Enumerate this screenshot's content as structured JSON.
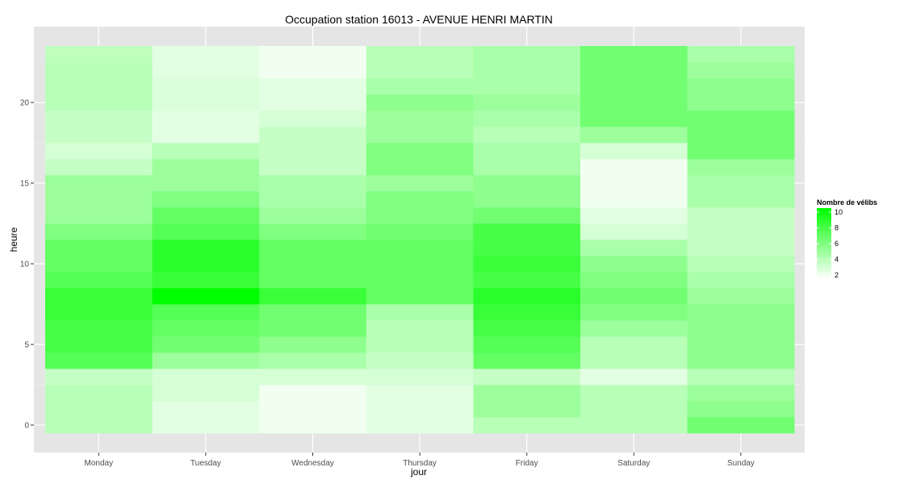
{
  "chart_data": {
    "type": "heatmap",
    "title": "Occupation station 16013 - AVENUE HENRI MARTIN",
    "xlabel": "jour",
    "ylabel": "heure",
    "x_categories": [
      "Monday",
      "Tuesday",
      "Wednesday",
      "Thursday",
      "Friday",
      "Saturday",
      "Sunday"
    ],
    "y_range": [
      -0.5,
      23.5
    ],
    "y_ticks": [
      0,
      5,
      10,
      15,
      20
    ],
    "y_tick_labels": [
      "0",
      "5",
      "10",
      "15",
      "20"
    ],
    "hours": [
      0,
      1,
      2,
      3,
      4,
      5,
      6,
      7,
      8,
      9,
      10,
      11,
      12,
      13,
      14,
      15,
      16,
      17,
      18,
      19,
      20,
      21,
      22,
      23
    ],
    "grid": true,
    "legend": {
      "title": "Nombre de vélibs",
      "position": "right",
      "min": 1.5,
      "max": 10.5,
      "ticks": [
        2,
        4,
        6,
        8,
        10
      ],
      "tick_labels": [
        "2",
        "4",
        "6",
        "8",
        "10"
      ],
      "low_color": "#ffffff",
      "high_color": "#00ff00"
    },
    "series": [
      {
        "name": "Monday",
        "values": [
          4.0,
          4.0,
          4.0,
          3.5,
          7.5,
          8.0,
          8.0,
          8.5,
          8.5,
          7.5,
          7.0,
          7.0,
          6.0,
          5.0,
          5.0,
          5.0,
          3.5,
          3.0,
          3.5,
          3.5,
          4.0,
          4.0,
          4.0,
          3.8
        ]
      },
      {
        "name": "Tuesday",
        "values": [
          2.5,
          2.5,
          3.0,
          3.0,
          5.0,
          6.5,
          7.0,
          7.5,
          10.5,
          8.5,
          9.0,
          9.0,
          7.5,
          7.0,
          6.0,
          5.0,
          5.0,
          4.0,
          2.5,
          2.5,
          2.8,
          2.8,
          2.5,
          2.5
        ]
      },
      {
        "name": "Wednesday",
        "values": [
          2.0,
          2.0,
          2.0,
          3.0,
          4.5,
          5.5,
          6.5,
          6.5,
          8.5,
          7.0,
          7.0,
          7.0,
          6.0,
          5.0,
          4.5,
          4.5,
          3.5,
          3.5,
          3.5,
          3.0,
          2.5,
          2.5,
          2.0,
          2.0
        ]
      },
      {
        "name": "Thursday",
        "values": [
          2.5,
          2.5,
          2.5,
          3.0,
          3.5,
          4.0,
          4.0,
          4.5,
          7.0,
          7.0,
          7.0,
          7.0,
          6.5,
          6.0,
          6.0,
          5.0,
          6.0,
          6.0,
          5.0,
          5.0,
          5.5,
          4.5,
          4.0,
          4.0
        ]
      },
      {
        "name": "Friday",
        "values": [
          4.0,
          5.0,
          5.0,
          3.5,
          7.0,
          7.5,
          8.0,
          8.5,
          9.0,
          8.0,
          8.5,
          8.0,
          8.0,
          6.5,
          5.5,
          5.5,
          4.5,
          4.5,
          4.0,
          4.5,
          5.0,
          4.5,
          4.5,
          4.5
        ]
      },
      {
        "name": "Saturday",
        "values": [
          4.0,
          4.0,
          4.0,
          2.5,
          4.0,
          4.0,
          5.0,
          6.0,
          6.5,
          6.0,
          5.5,
          4.5,
          3.0,
          2.5,
          2.0,
          2.0,
          2.0,
          3.0,
          5.0,
          6.5,
          6.5,
          6.5,
          6.5,
          6.5
        ]
      },
      {
        "name": "Sunday",
        "values": [
          6.5,
          5.5,
          5.0,
          4.0,
          5.5,
          5.5,
          5.5,
          5.5,
          5.0,
          4.5,
          4.0,
          3.5,
          3.5,
          3.5,
          4.5,
          4.5,
          5.0,
          6.5,
          6.5,
          6.5,
          5.5,
          5.5,
          5.0,
          4.5
        ]
      }
    ]
  }
}
